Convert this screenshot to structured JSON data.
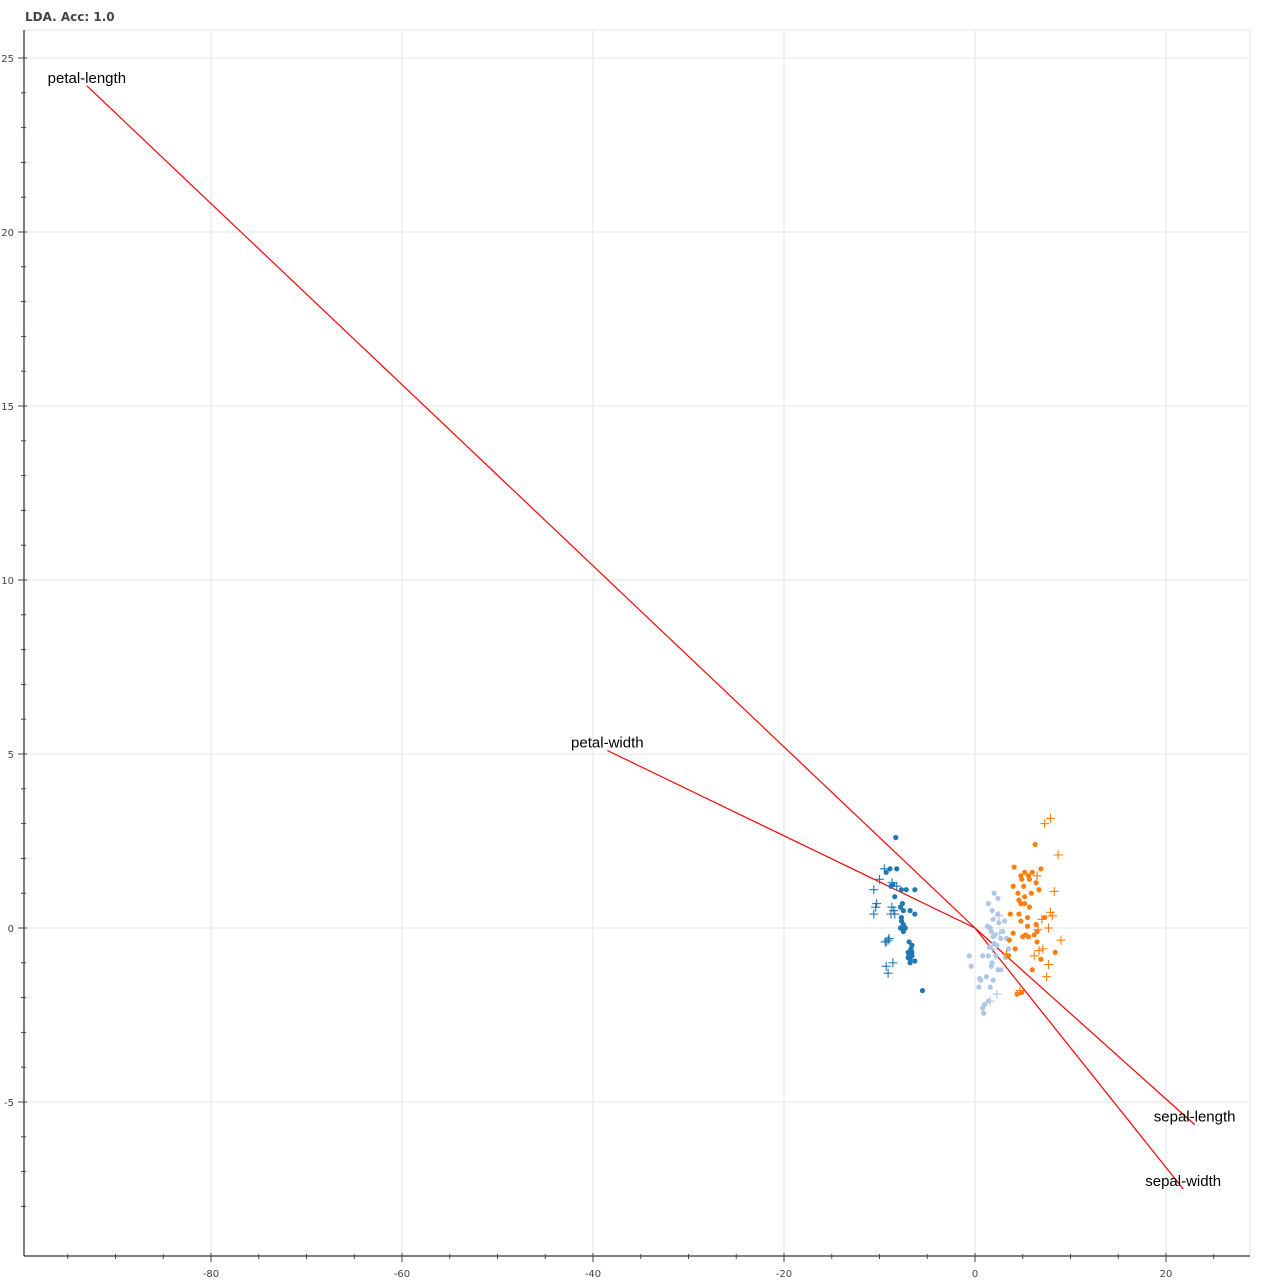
{
  "chart_data": {
    "type": "scatter",
    "title": "LDA. Acc: 1.0",
    "xlabel": "",
    "ylabel": "",
    "xlim": [
      -99.5,
      29
    ],
    "ylim": [
      -9,
      26
    ],
    "x_ticks": [
      -80,
      -60,
      -40,
      -20,
      0,
      20
    ],
    "y_ticks": [
      25,
      20,
      15,
      10,
      5,
      0,
      -5
    ],
    "grid": true,
    "legend": "none",
    "series": [
      {
        "color": "#1f77b4",
        "markers": [
          {
            "marker": "circle",
            "points": [
              [
                -8.3,
                2.6
              ],
              [
                -8.9,
                1.7
              ],
              [
                -9.3,
                1.6
              ],
              [
                -8.2,
                1.7
              ],
              [
                -8.6,
                1.25
              ],
              [
                -8.8,
                1.2
              ],
              [
                -7.7,
                1.1
              ],
              [
                -7.2,
                1.1
              ],
              [
                -6.3,
                1.1
              ],
              [
                -8.4,
                0.9
              ],
              [
                -7.6,
                0.7
              ],
              [
                -7.8,
                0.6
              ],
              [
                -7.5,
                0.5
              ],
              [
                -6.8,
                0.5
              ],
              [
                -6.3,
                0.4
              ],
              [
                -7.7,
                0.3
              ],
              [
                -7.7,
                0.2
              ],
              [
                -7.5,
                0.1
              ],
              [
                -7.3,
                0.0
              ],
              [
                -7.8,
                0.0
              ],
              [
                -7.5,
                -0.1
              ],
              [
                -6.9,
                -0.4
              ],
              [
                -6.6,
                -0.5
              ],
              [
                -6.7,
                -0.6
              ],
              [
                -7.0,
                -0.7
              ],
              [
                -6.9,
                -0.75
              ],
              [
                -6.6,
                -0.7
              ],
              [
                -6.6,
                -0.8
              ],
              [
                -7.0,
                -0.85
              ],
              [
                -6.3,
                -0.95
              ],
              [
                -6.8,
                -0.9
              ],
              [
                -6.8,
                -1.0
              ],
              [
                -5.5,
                -1.8
              ]
            ]
          },
          {
            "marker": "cross",
            "points": [
              [
                -9.5,
                1.7
              ],
              [
                -10.0,
                1.4
              ],
              [
                -8.7,
                1.3
              ],
              [
                -8.2,
                1.2
              ],
              [
                -10.6,
                1.1
              ],
              [
                -10.3,
                0.7
              ],
              [
                -10.4,
                0.6
              ],
              [
                -8.7,
                0.6
              ],
              [
                -8.5,
                0.5
              ],
              [
                -8.4,
                0.4
              ],
              [
                -8.8,
                0.4
              ],
              [
                -10.6,
                0.4
              ],
              [
                -9.0,
                -0.3
              ],
              [
                -9.1,
                -0.35
              ],
              [
                -9.4,
                -0.4
              ],
              [
                -9.3,
                -0.4
              ],
              [
                -8.6,
                -1.0
              ],
              [
                -9.3,
                -1.1
              ],
              [
                -9.1,
                -1.3
              ]
            ]
          }
        ]
      },
      {
        "color": "#aec7e8",
        "markers": [
          {
            "marker": "circle",
            "points": [
              [
                2.0,
                1.0
              ],
              [
                2.4,
                0.85
              ],
              [
                1.4,
                0.7
              ],
              [
                1.8,
                0.5
              ],
              [
                2.4,
                0.4
              ],
              [
                1.9,
                0.25
              ],
              [
                3.1,
                0.2
              ],
              [
                2.5,
                0.15
              ],
              [
                1.3,
                0.05
              ],
              [
                1.6,
                0.0
              ],
              [
                1.7,
                -0.1
              ],
              [
                2.9,
                -0.1
              ],
              [
                2.1,
                -0.2
              ],
              [
                1.9,
                -0.25
              ],
              [
                2.7,
                -0.3
              ],
              [
                3.3,
                -0.3
              ],
              [
                2.0,
                -0.45
              ],
              [
                2.3,
                -0.5
              ],
              [
                1.5,
                -0.55
              ],
              [
                3.5,
                -0.6
              ],
              [
                -0.6,
                -0.8
              ],
              [
                0.8,
                -0.8
              ],
              [
                1.4,
                -0.8
              ],
              [
                2.2,
                -0.8
              ],
              [
                3.2,
                -0.85
              ],
              [
                1.8,
                -1.0
              ],
              [
                -0.4,
                -1.1
              ],
              [
                1.7,
                -1.1
              ],
              [
                2.4,
                -1.2
              ],
              [
                2.7,
                -1.2
              ],
              [
                0.5,
                -1.45
              ],
              [
                1.2,
                -1.4
              ],
              [
                0.6,
                -1.5
              ],
              [
                1.9,
                -1.5
              ],
              [
                0.4,
                -1.7
              ],
              [
                1.6,
                -1.7
              ],
              [
                1.4,
                -2.1
              ],
              [
                1.0,
                -2.2
              ],
              [
                0.8,
                -2.3
              ],
              [
                0.9,
                -2.45
              ]
            ]
          },
          {
            "marker": "cross",
            "points": [
              [
                2.5,
                0.35
              ],
              [
                1.8,
                -0.6
              ],
              [
                2.6,
                -0.15
              ],
              [
                2.3,
                -1.9
              ],
              [
                1.6,
                -2.1
              ]
            ]
          }
        ]
      },
      {
        "color": "#ff7f0e",
        "markers": [
          {
            "marker": "circle",
            "points": [
              [
                6.3,
                2.4
              ],
              [
                4.1,
                1.75
              ],
              [
                6.9,
                1.7
              ],
              [
                5.2,
                1.6
              ],
              [
                6.0,
                1.6
              ],
              [
                4.8,
                1.5
              ],
              [
                5.6,
                1.5
              ],
              [
                4.9,
                1.4
              ],
              [
                5.7,
                1.4
              ],
              [
                6.4,
                1.3
              ],
              [
                5.1,
                1.2
              ],
              [
                4.0,
                1.2
              ],
              [
                6.7,
                1.1
              ],
              [
                4.5,
                1.0
              ],
              [
                5.9,
                1.0
              ],
              [
                5.2,
                0.9
              ],
              [
                4.6,
                0.8
              ],
              [
                5.2,
                0.7
              ],
              [
                4.8,
                0.7
              ],
              [
                5.7,
                0.6
              ],
              [
                3.7,
                0.4
              ],
              [
                4.6,
                0.4
              ],
              [
                5.5,
                0.3
              ],
              [
                7.3,
                0.3
              ],
              [
                4.8,
                0.2
              ],
              [
                6.4,
                0.1
              ],
              [
                5.5,
                0.05
              ],
              [
                6.5,
                -0.1
              ],
              [
                4.0,
                -0.15
              ],
              [
                5.3,
                -0.2
              ],
              [
                6.2,
                -0.2
              ],
              [
                5.0,
                -0.25
              ],
              [
                5.6,
                -0.25
              ],
              [
                3.6,
                -0.35
              ],
              [
                6.5,
                -0.4
              ],
              [
                4.2,
                -0.6
              ],
              [
                8.4,
                -0.7
              ],
              [
                3.5,
                -0.8
              ],
              [
                6.9,
                -0.9
              ],
              [
                6.0,
                -1.2
              ],
              [
                4.4,
                -1.9
              ],
              [
                4.9,
                -1.85
              ]
            ]
          },
          {
            "marker": "cross",
            "points": [
              [
                7.3,
                3.0
              ],
              [
                7.9,
                3.15
              ],
              [
                8.7,
                2.1
              ],
              [
                6.5,
                1.5
              ],
              [
                8.3,
                1.05
              ],
              [
                7.9,
                0.45
              ],
              [
                8.1,
                0.35
              ],
              [
                7.0,
                0.25
              ],
              [
                7.7,
                0.0
              ],
              [
                6.6,
                -0.05
              ],
              [
                9.0,
                -0.35
              ],
              [
                7.1,
                -0.6
              ],
              [
                6.7,
                -0.65
              ],
              [
                7.7,
                -1.05
              ],
              [
                7.5,
                -1.4
              ],
              [
                6.2,
                -0.8
              ],
              [
                3.3,
                -0.75
              ],
              [
                4.7,
                -1.8
              ]
            ]
          }
        ]
      }
    ],
    "loadings": {
      "color": "#ff0000",
      "vectors": [
        {
          "name": "petal-length",
          "x": -93.0,
          "y": 24.2
        },
        {
          "name": "petal-width",
          "x": -38.5,
          "y": 5.1
        },
        {
          "name": "sepal-length",
          "x": 23.0,
          "y": -5.65
        },
        {
          "name": "sepal-width",
          "x": 21.8,
          "y": -7.5
        }
      ]
    }
  }
}
